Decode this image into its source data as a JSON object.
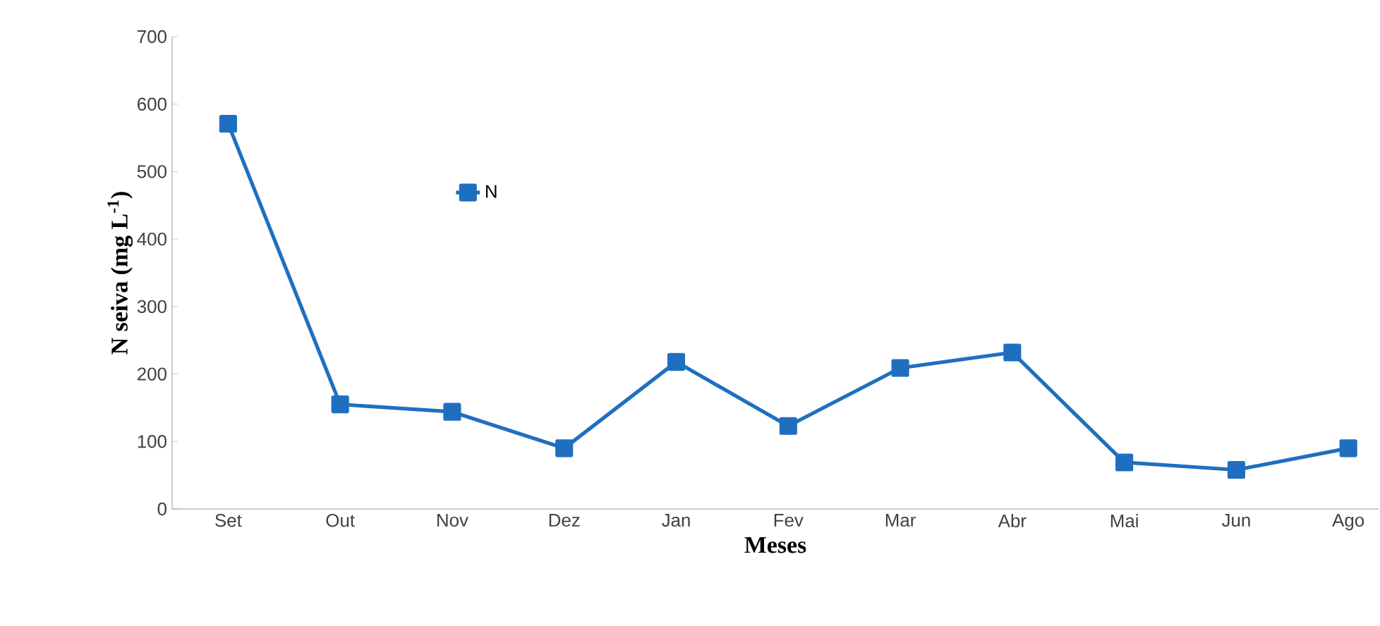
{
  "chart_data": {
    "type": "line",
    "xlabel": "Meses",
    "ylabel": "N seiva (mg L$^{-1}$)",
    "categories": [
      "Set",
      "Out",
      "Nov",
      "Dez",
      "Jan",
      "Fev",
      "Mar",
      "Abr",
      "Mai",
      "Jun",
      "Ago"
    ],
    "series": [
      {
        "name": "N",
        "color": "#1f6fc0",
        "values": [
          571,
          155,
          144,
          90,
          218,
          123,
          209,
          232,
          69,
          58,
          90
        ]
      }
    ],
    "ylim": [
      0,
      700
    ],
    "yticks": [
      0,
      100,
      200,
      300,
      400,
      500,
      600,
      700
    ],
    "grid": false,
    "legend": "top left",
    "marker": "square",
    "line_style": "solid"
  }
}
